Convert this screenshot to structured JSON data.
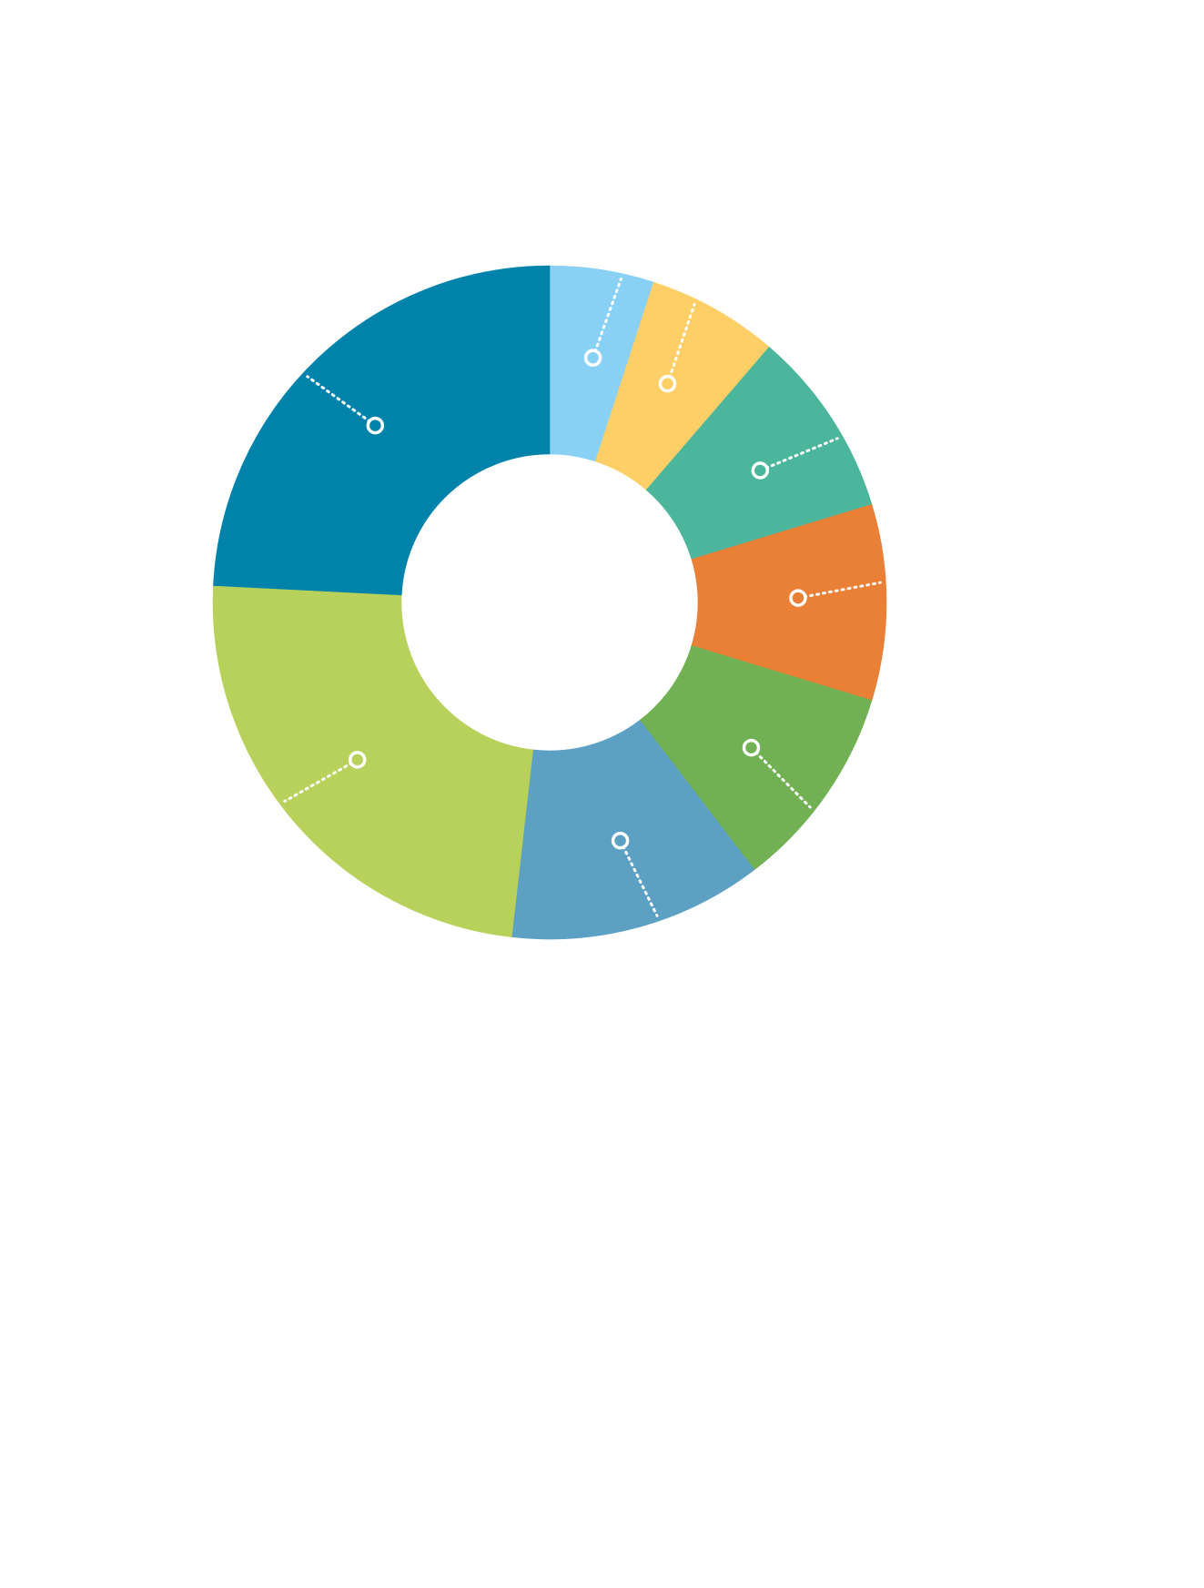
{
  "chart_data": {
    "type": "pie",
    "style": "donut",
    "title": "",
    "legend": "none",
    "slices": [
      {
        "value": 5.0,
        "color": "#89d0f5"
      },
      {
        "value": 6.3,
        "color": "#fecf67"
      },
      {
        "value": 9.0,
        "color": "#4bb69c"
      },
      {
        "value": 9.4,
        "color": "#ea7f36"
      },
      {
        "value": 9.9,
        "color": "#71b153"
      },
      {
        "value": 12.2,
        "color": "#5ca0c3"
      },
      {
        "value": 24.0,
        "color": "#b8d15b"
      },
      {
        "value": 24.2,
        "color": "#0083ab"
      }
    ]
  }
}
